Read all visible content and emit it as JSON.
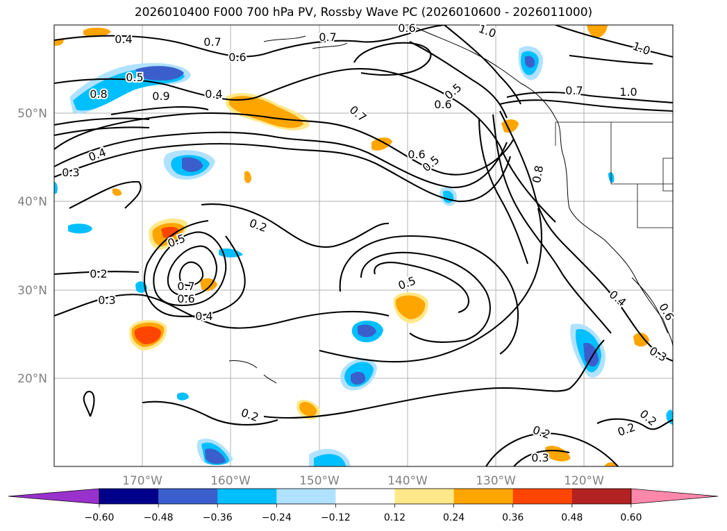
{
  "title": "2026010400 F000 700 hPa PV, Rossby Wave PC (2026010600 - 2026011000)",
  "lat_labels": [
    "50°N",
    "40°N",
    "30°N",
    "20°N"
  ],
  "lon_labels": [
    "170°W",
    "160°W",
    "150°W",
    "140°W",
    "130°W",
    "120°W"
  ],
  "colorbar": {
    "ticks": [
      "−0.60",
      "−0.48",
      "−0.36",
      "−0.24",
      "−0.12",
      "0.12",
      "0.24",
      "0.36",
      "0.48",
      "0.60"
    ],
    "colors": [
      "#9932cc",
      "#00008b",
      "#3a5fcd",
      "#00bfff",
      "#b0e2ff",
      "#ffffff",
      "#ffe88a",
      "#ffa500",
      "#ff4500",
      "#b22222",
      "#ff88aa"
    ]
  },
  "contour_labels": [
    "0.4",
    "0.5",
    "0.8",
    "0.7",
    "0.6",
    "0.7",
    "0.6",
    "1.0",
    "1.0",
    "0.4",
    "0.9",
    "0.5",
    "0.6",
    "0.7",
    "1.0",
    "0.7",
    "0.6",
    "0.5",
    "0.4",
    "0.3",
    "0.8",
    "0.2",
    "0.5",
    "0.2",
    "0.3",
    "0.7",
    "0.6",
    "0.4",
    "0.5",
    "0.2",
    "0.2",
    "0.3",
    "0.2",
    "0.2",
    "0.3",
    "0.4",
    "0.6"
  ]
}
